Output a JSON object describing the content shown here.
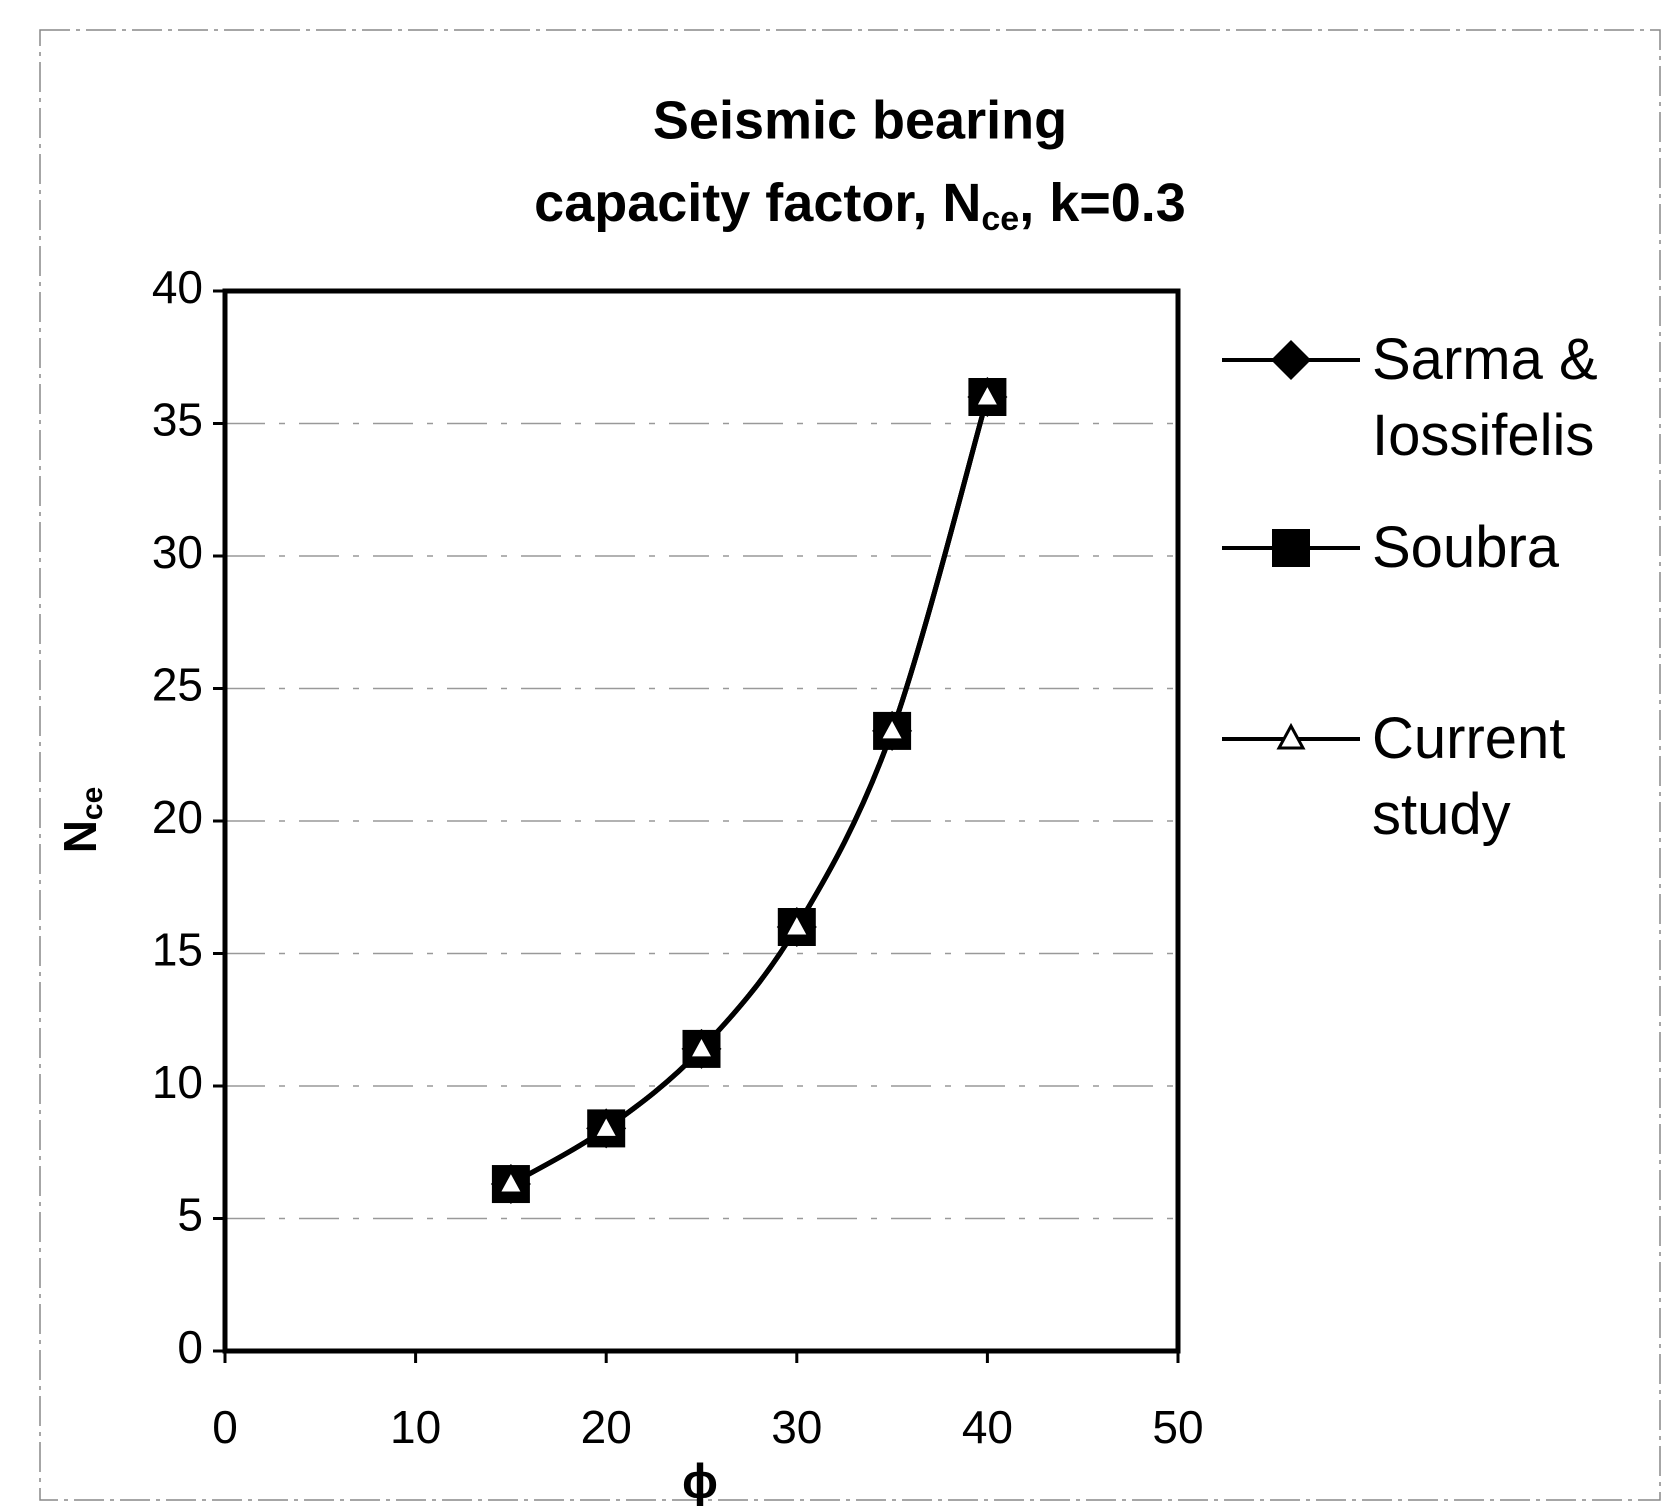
{
  "chart_data": {
    "type": "line",
    "title": {
      "line1": "Seismic bearing",
      "line2": "capacity factor, N",
      "line2_sub": "ce",
      "line2_end": ", k=0.3"
    },
    "xlabel": "ϕ",
    "ylabel": "N",
    "ylabel_sub": "ce",
    "x": [
      15,
      20,
      25,
      30,
      35,
      40
    ],
    "series": [
      {
        "name": "Sarma & Iossifelis",
        "color": "#000000",
        "marker": "diamond",
        "values": [
          6.3,
          8.4,
          11.4,
          16.0,
          23.4,
          36.0
        ]
      },
      {
        "name": "Soubra",
        "color": "#000000",
        "marker": "square",
        "values": [
          6.3,
          8.4,
          11.4,
          16.0,
          23.4,
          36.0
        ]
      },
      {
        "name": "Current study",
        "color": "#000000",
        "marker": "triangle",
        "values": [
          6.3,
          8.4,
          11.4,
          16.0,
          23.4,
          36.0
        ]
      }
    ],
    "xlim": [
      0,
      50
    ],
    "xticks": [
      0,
      10,
      20,
      30,
      40,
      50
    ],
    "ylim": [
      0,
      40
    ],
    "yticks": [
      0,
      5,
      10,
      15,
      20,
      25,
      30,
      35,
      40
    ],
    "grid": true,
    "legend": "right"
  }
}
